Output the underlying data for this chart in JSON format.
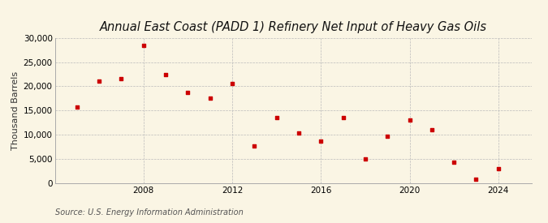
{
  "title": "Annual East Coast (PADD 1) Refinery Net Input of Heavy Gas Oils",
  "ylabel": "Thousand Barrels",
  "source": "Source: U.S. Energy Information Administration",
  "years": [
    2005,
    2006,
    2007,
    2008,
    2009,
    2010,
    2011,
    2012,
    2013,
    2014,
    2015,
    2016,
    2017,
    2018,
    2019,
    2020,
    2021,
    2022,
    2023,
    2024
  ],
  "values": [
    15700,
    21000,
    21500,
    28400,
    22400,
    18700,
    17500,
    20500,
    7700,
    13500,
    10300,
    8700,
    13500,
    5000,
    9700,
    13000,
    11000,
    4200,
    800,
    2900
  ],
  "marker_color": "#cc0000",
  "background_color": "#faf5e4",
  "grid_color": "#bbbbbb",
  "ylim": [
    0,
    30000
  ],
  "yticks": [
    0,
    5000,
    10000,
    15000,
    20000,
    25000,
    30000
  ],
  "xticks": [
    2008,
    2012,
    2016,
    2020,
    2024
  ],
  "title_fontsize": 10.5,
  "label_fontsize": 8,
  "tick_fontsize": 7.5,
  "source_fontsize": 7
}
